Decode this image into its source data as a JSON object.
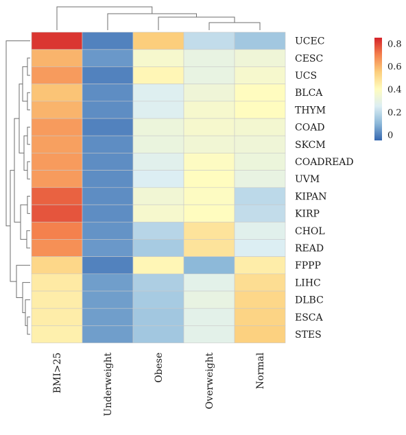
{
  "chart_data": {
    "type": "heatmap",
    "title": "",
    "xlabel": "",
    "ylabel": "",
    "columns": [
      "BMI>25",
      "Underweight",
      "Obese",
      "Overweight",
      "Normal"
    ],
    "rows": [
      "UCEC",
      "CESC",
      "UCS",
      "BLCA",
      "THYM",
      "COAD",
      "SKCM",
      "COADREAD",
      "UVM",
      "KIPAN",
      "KIRP",
      "CHOL",
      "READ",
      "FPPP",
      "LIHC",
      "DLBC",
      "ESCA",
      "STES"
    ],
    "values": [
      [
        0.82,
        0.0,
        0.55,
        0.2,
        0.14
      ],
      [
        0.6,
        0.04,
        0.36,
        0.3,
        0.33
      ],
      [
        0.65,
        0.0,
        0.42,
        0.3,
        0.36
      ],
      [
        0.57,
        0.02,
        0.26,
        0.33,
        0.4
      ],
      [
        0.6,
        0.02,
        0.26,
        0.36,
        0.4
      ],
      [
        0.65,
        0.0,
        0.32,
        0.36,
        0.35
      ],
      [
        0.64,
        0.02,
        0.31,
        0.34,
        0.33
      ],
      [
        0.65,
        0.02,
        0.27,
        0.39,
        0.32
      ],
      [
        0.65,
        0.02,
        0.25,
        0.4,
        0.3
      ],
      [
        0.75,
        0.02,
        0.34,
        0.39,
        0.19
      ],
      [
        0.77,
        0.02,
        0.36,
        0.4,
        0.2
      ],
      [
        0.7,
        0.03,
        0.18,
        0.48,
        0.27
      ],
      [
        0.67,
        0.04,
        0.15,
        0.48,
        0.25
      ],
      [
        0.52,
        0.0,
        0.42,
        0.1,
        0.45
      ],
      [
        0.46,
        0.05,
        0.16,
        0.28,
        0.5
      ],
      [
        0.45,
        0.05,
        0.15,
        0.3,
        0.52
      ],
      [
        0.45,
        0.05,
        0.14,
        0.28,
        0.53
      ],
      [
        0.44,
        0.05,
        0.14,
        0.28,
        0.54
      ]
    ],
    "colorbar": {
      "range": [
        -0.05,
        0.85
      ],
      "ticks": [
        0,
        0.2,
        0.4,
        0.6,
        0.8
      ],
      "tick_labels": [
        "0",
        "0.2",
        "0.4",
        "0.6",
        "0.8"
      ],
      "colors": [
        "#3567b0",
        "#8db9d9",
        "#dceef3",
        "#fffcbf",
        "#fcce7c",
        "#f4814d",
        "#d4232a"
      ]
    },
    "column_dendrogram": true,
    "row_dendrogram": true,
    "grid": false
  }
}
